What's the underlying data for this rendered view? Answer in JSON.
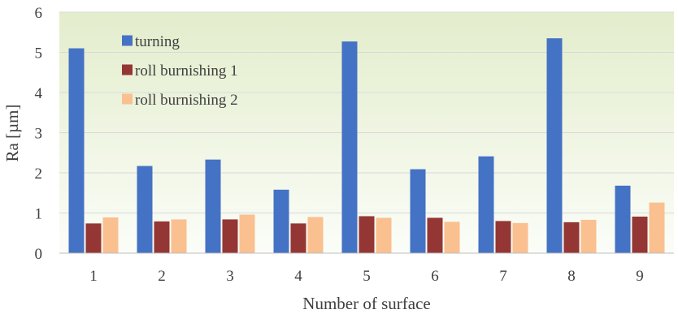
{
  "chart_data": {
    "type": "bar",
    "xlabel": "Number of surface",
    "ylabel": "Ra [µm]",
    "ylim": [
      0,
      6
    ],
    "yticks": [
      0,
      1,
      2,
      3,
      4,
      5,
      6
    ],
    "categories": [
      "1",
      "2",
      "3",
      "4",
      "5",
      "6",
      "7",
      "8",
      "9"
    ],
    "grid": "horizontal",
    "legend_position": "top-left",
    "series": [
      {
        "name": "turning",
        "color": "#4472C4",
        "values": [
          5.1,
          2.17,
          2.33,
          1.58,
          5.27,
          2.09,
          2.41,
          5.35,
          1.68
        ]
      },
      {
        "name": "roll burnishing 1",
        "color": "#943634",
        "values": [
          0.74,
          0.79,
          0.84,
          0.74,
          0.92,
          0.88,
          0.8,
          0.77,
          0.91
        ]
      },
      {
        "name": "roll burnishing 2",
        "color": "#FAC090",
        "values": [
          0.89,
          0.84,
          0.96,
          0.9,
          0.88,
          0.78,
          0.75,
          0.83,
          1.26
        ]
      }
    ]
  }
}
